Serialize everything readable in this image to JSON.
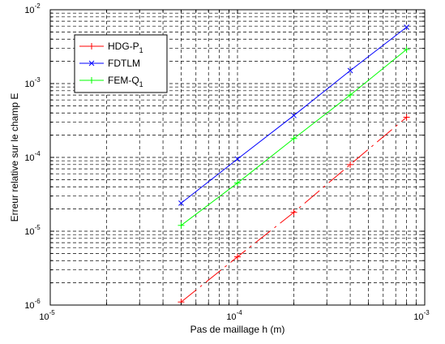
{
  "chart_data": {
    "type": "line",
    "xscale": "log",
    "yscale": "log",
    "xlim": [
      1e-05,
      0.001
    ],
    "ylim": [
      1e-06,
      0.01
    ],
    "xlabel": "Pas de maillage h (m)",
    "ylabel": "Erreur relative sur le champ E",
    "grid": true,
    "legend_position": "top-left",
    "x_ticks": [
      {
        "base": "10",
        "exp": "-5"
      },
      {
        "base": "10",
        "exp": "-4"
      },
      {
        "base": "10",
        "exp": "-3"
      }
    ],
    "y_ticks": [
      {
        "base": "10",
        "exp": "-6"
      },
      {
        "base": "10",
        "exp": "-5"
      },
      {
        "base": "10",
        "exp": "-4"
      },
      {
        "base": "10",
        "exp": "-3"
      },
      {
        "base": "10",
        "exp": "-2"
      }
    ],
    "series": [
      {
        "name_main": "HDG-P",
        "name_sub": "1",
        "color": "#ff0000",
        "marker": "plus",
        "linestyle": "dashdot",
        "x": [
          5e-05,
          0.0001,
          0.0002,
          0.0004,
          0.0008
        ],
        "y": [
          1.1e-06,
          4.5e-06,
          1.8e-05,
          8e-05,
          0.00035
        ]
      },
      {
        "name_main": "FDTLM",
        "name_sub": "",
        "color": "#0000ff",
        "marker": "x",
        "linestyle": "solid",
        "x": [
          5e-05,
          0.0001,
          0.0002,
          0.0004,
          0.0008
        ],
        "y": [
          2.4e-05,
          9.5e-05,
          0.00037,
          0.0015,
          0.0058
        ]
      },
      {
        "name_main": "FEM-Q",
        "name_sub": "1",
        "color": "#00ff00",
        "marker": "plus",
        "linestyle": "solid",
        "x": [
          5e-05,
          0.0001,
          0.0002,
          0.0004,
          0.0008
        ],
        "y": [
          1.2e-05,
          4.5e-05,
          0.00018,
          0.0007,
          0.0029
        ]
      }
    ]
  }
}
